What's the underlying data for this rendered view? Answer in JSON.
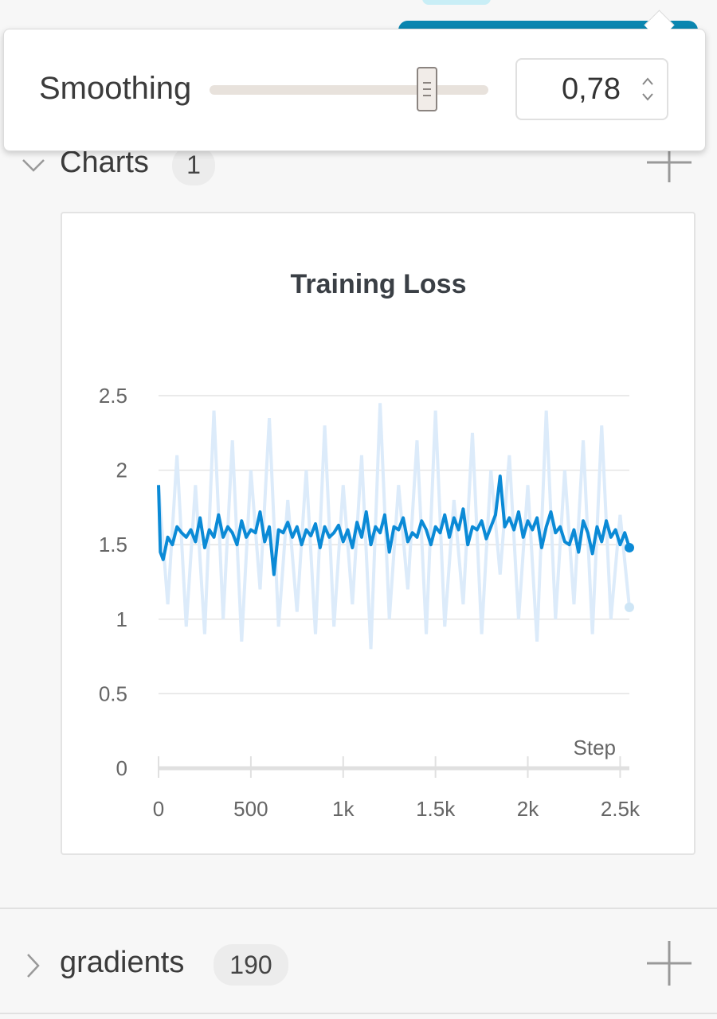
{
  "popover": {
    "label": "Smoothing",
    "value": "0,78",
    "slider_fraction": 0.78
  },
  "sections": {
    "charts": {
      "title": "Charts",
      "count": "1"
    },
    "gradients": {
      "title": "gradients",
      "count": "190"
    }
  },
  "colors": {
    "accent": "#0a86b0",
    "smoothed_line": "#0b8ad6",
    "raw_line": "#dcebfa"
  },
  "chart_data": {
    "type": "line",
    "title": "Training Loss",
    "xlabel": "Step",
    "ylabel": "",
    "xlim": [
      0,
      2550
    ],
    "ylim": [
      0,
      2.5
    ],
    "x_ticks": [
      "0",
      "500",
      "1k",
      "1.5k",
      "2k",
      "2.5k"
    ],
    "y_ticks": [
      "0",
      "0.5",
      "1",
      "1.5",
      "2",
      "2.5"
    ],
    "grid": true,
    "series": [
      {
        "style": "raw",
        "x": [
          0,
          50,
          100,
          150,
          200,
          250,
          300,
          350,
          400,
          450,
          500,
          550,
          600,
          650,
          700,
          750,
          800,
          850,
          900,
          950,
          1000,
          1050,
          1100,
          1150,
          1200,
          1250,
          1300,
          1350,
          1400,
          1450,
          1500,
          1550,
          1600,
          1650,
          1700,
          1750,
          1800,
          1850,
          1900,
          1950,
          2000,
          2050,
          2100,
          2150,
          2200,
          2250,
          2300,
          2350,
          2400,
          2450,
          2500,
          2550
        ],
        "values": [
          1.9,
          1.1,
          2.1,
          0.95,
          1.9,
          0.9,
          2.4,
          1.0,
          2.2,
          0.85,
          2.0,
          1.2,
          2.35,
          0.95,
          1.8,
          1.05,
          2.0,
          0.9,
          2.3,
          0.95,
          1.9,
          1.1,
          2.1,
          0.8,
          2.45,
          1.0,
          1.9,
          1.2,
          2.2,
          0.9,
          2.4,
          0.95,
          1.8,
          1.1,
          2.25,
          0.9,
          2.0,
          1.3,
          2.1,
          1.0,
          1.9,
          0.85,
          2.4,
          1.0,
          2.0,
          1.1,
          2.2,
          0.9,
          2.3,
          1.0,
          1.7,
          1.08
        ]
      },
      {
        "style": "smoothed",
        "x": [
          0,
          10,
          25,
          50,
          75,
          100,
          125,
          150,
          175,
          200,
          225,
          250,
          275,
          300,
          325,
          350,
          375,
          400,
          425,
          450,
          475,
          500,
          525,
          550,
          575,
          600,
          625,
          650,
          675,
          700,
          725,
          750,
          775,
          800,
          825,
          850,
          875,
          900,
          925,
          950,
          975,
          1000,
          1025,
          1050,
          1075,
          1100,
          1125,
          1150,
          1175,
          1200,
          1225,
          1250,
          1275,
          1300,
          1325,
          1350,
          1375,
          1400,
          1425,
          1450,
          1475,
          1500,
          1525,
          1550,
          1575,
          1600,
          1625,
          1650,
          1675,
          1700,
          1725,
          1750,
          1775,
          1800,
          1825,
          1850,
          1875,
          1900,
          1925,
          1950,
          1975,
          2000,
          2025,
          2050,
          2075,
          2100,
          2125,
          2150,
          2175,
          2200,
          2225,
          2250,
          2275,
          2300,
          2325,
          2350,
          2375,
          2400,
          2425,
          2450,
          2475,
          2500,
          2525,
          2550
        ],
        "values": [
          1.9,
          1.45,
          1.4,
          1.55,
          1.5,
          1.62,
          1.58,
          1.55,
          1.6,
          1.52,
          1.68,
          1.48,
          1.6,
          1.55,
          1.7,
          1.55,
          1.62,
          1.58,
          1.5,
          1.66,
          1.55,
          1.6,
          1.58,
          1.72,
          1.52,
          1.62,
          1.3,
          1.6,
          1.58,
          1.65,
          1.55,
          1.62,
          1.5,
          1.6,
          1.56,
          1.64,
          1.48,
          1.62,
          1.55,
          1.58,
          1.63,
          1.52,
          1.6,
          1.48,
          1.65,
          1.55,
          1.72,
          1.5,
          1.62,
          1.58,
          1.7,
          1.45,
          1.62,
          1.6,
          1.68,
          1.52,
          1.58,
          1.55,
          1.66,
          1.6,
          1.5,
          1.62,
          1.58,
          1.7,
          1.55,
          1.68,
          1.6,
          1.74,
          1.5,
          1.62,
          1.6,
          1.66,
          1.54,
          1.62,
          1.7,
          1.96,
          1.62,
          1.68,
          1.6,
          1.72,
          1.55,
          1.66,
          1.6,
          1.68,
          1.48,
          1.62,
          1.72,
          1.58,
          1.62,
          1.52,
          1.5,
          1.6,
          1.45,
          1.66,
          1.58,
          1.44,
          1.62,
          1.52,
          1.66,
          1.55,
          1.6,
          1.5,
          1.58,
          1.48
        ]
      }
    ]
  }
}
